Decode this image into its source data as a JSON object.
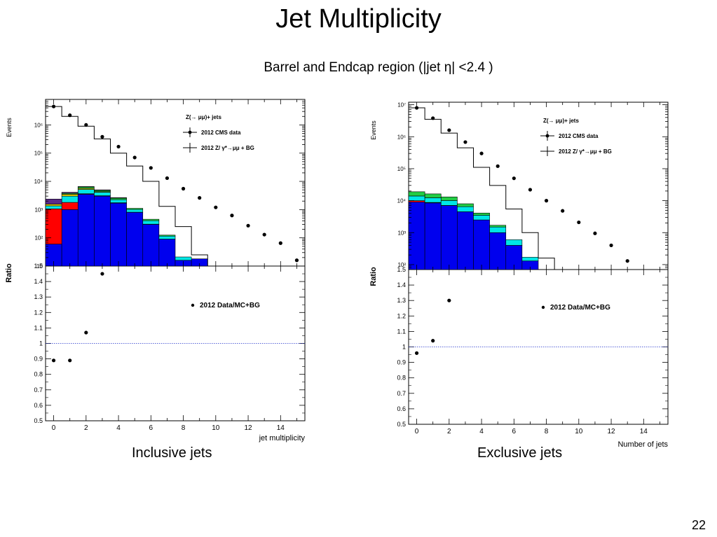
{
  "slide": {
    "title": "Jet Multiplicity",
    "subtitle": "Barrel and Endcap region (|jet η| <2.4 )",
    "page_number": "22"
  },
  "colors": {
    "data": "#000000",
    "mc_total": "#000000",
    "bg_blue": "#0000ee",
    "bg_cyan": "#00e6e6",
    "bg_red": "#ff0000",
    "bg_yellow": "#e6d200",
    "bg_green": "#22cc44",
    "bg_purple": "#5a2a8a",
    "ratio_line": "#2233cc"
  },
  "chart_data": [
    {
      "type": "histogram+scatter",
      "caption": "Inclusive jets",
      "top": {
        "ylabel": "Events",
        "yscale": "log",
        "ylim": [
          10,
          8000000
        ],
        "xlim": [
          -0.5,
          15.5
        ],
        "ytick_labels": [
          {
            "v": 10,
            "t": "10"
          },
          {
            "v": 100,
            "t": "10²"
          },
          {
            "v": 1000,
            "t": "10³"
          },
          {
            "v": 10000,
            "t": "10⁴"
          },
          {
            "v": 100000,
            "t": "10⁵"
          },
          {
            "v": 1000000,
            "t": "10⁶"
          }
        ],
        "legend": {
          "title": "Z(→ μμ)+ jets",
          "entries": [
            "2012 CMS data",
            "2012 Z/ γ*→μμ + BG"
          ]
        },
        "data_points": {
          "x": [
            0,
            1,
            2,
            3,
            4,
            5,
            6,
            7,
            8,
            9,
            10,
            11,
            12,
            13,
            14,
            15
          ],
          "y": [
            4500000,
            2200000,
            1000000,
            380000,
            170000,
            70000,
            30000,
            13000,
            5500,
            2600,
            1200,
            620,
            270,
            130,
            65,
            16
          ]
        },
        "mc_total_histogram": {
          "edges": [
            -0.5,
            0.5,
            1.5,
            2.5,
            3.5,
            4.5,
            5.5,
            6.5,
            7.5,
            8.5,
            9.5
          ],
          "values": [
            4500000,
            2000000,
            900000,
            320000,
            100000,
            35000,
            10000,
            1300,
            250,
            25
          ]
        },
        "bg_stack": {
          "edges": [
            -0.5,
            0.5,
            1.5,
            2.5,
            3.5,
            4.5,
            5.5,
            6.5,
            7.5,
            8.5,
            9.5
          ],
          "layers": [
            {
              "color_key": "bg_blue",
              "values": [
                60,
                1000,
                3500,
                3000,
                1700,
                800,
                300,
                90,
                16,
                18
              ]
            },
            {
              "color_key": "bg_red",
              "values": [
                1000,
                800,
                150,
                100,
                50,
                10,
                5,
                0,
                0,
                0
              ]
            },
            {
              "color_key": "bg_cyan",
              "values": [
                300,
                1200,
                1500,
                1000,
                500,
                200,
                100,
                25,
                5,
                0
              ]
            },
            {
              "color_key": "bg_yellow",
              "values": [
                200,
                500,
                500,
                200,
                0,
                0,
                0,
                0,
                0,
                0
              ]
            },
            {
              "color_key": "bg_green",
              "values": [
                0,
                300,
                700,
                500,
                300,
                100,
                50,
                10,
                0,
                0
              ]
            },
            {
              "color_key": "bg_purple",
              "values": [
                800,
                300,
                200,
                200,
                100,
                0,
                0,
                0,
                0,
                0
              ]
            }
          ]
        }
      },
      "bottom": {
        "ylabel": "Ratio",
        "xlabel": "jet multiplicity",
        "ylim": [
          0.5,
          1.5
        ],
        "xlim": [
          -0.5,
          15.5
        ],
        "yticks": [
          0.5,
          0.6,
          0.7,
          0.8,
          0.9,
          1,
          1.1,
          1.2,
          1.3,
          1.4,
          1.5
        ],
        "ytick_labels": [
          "0.5",
          "0.6",
          "0.7",
          "0.8",
          "0.9",
          "1",
          "1.1",
          "1.2",
          "1.3",
          "1.4",
          "1.5"
        ],
        "xticks": [
          0,
          2,
          4,
          6,
          8,
          10,
          12,
          14
        ],
        "xtick_labels": [
          "0",
          "2",
          "4",
          "6",
          "8",
          "10",
          "12",
          "14"
        ],
        "legend": "2012 Data/MC+BG",
        "reference_line": 1.0,
        "points": {
          "x": [
            0,
            1,
            2,
            3
          ],
          "y": [
            0.89,
            0.89,
            1.07,
            1.45
          ]
        }
      }
    },
    {
      "type": "histogram+scatter",
      "caption": "Exclusive jets",
      "top": {
        "ylabel": "Events",
        "yscale": "log",
        "ylim": [
          70,
          12000000
        ],
        "xlim": [
          -0.5,
          15.5
        ],
        "ytick_labels": [
          {
            "v": 100,
            "t": "10²"
          },
          {
            "v": 1000,
            "t": "10³"
          },
          {
            "v": 10000,
            "t": "10⁴"
          },
          {
            "v": 100000,
            "t": "10⁵"
          },
          {
            "v": 1000000,
            "t": "10⁶"
          },
          {
            "v": 10000000,
            "t": "10⁷"
          }
        ],
        "legend": {
          "title": "Z(→ μμ)+ jets",
          "entries": [
            "2012 CMS data",
            "2012 Z/ γ*→μμ + BG"
          ]
        },
        "data_points": {
          "x": [
            0,
            1,
            2,
            3,
            4,
            5,
            6,
            7,
            8,
            9,
            10,
            11,
            12,
            13
          ],
          "y": [
            8000000,
            3800000,
            1600000,
            680000,
            300000,
            120000,
            50000,
            22000,
            10000,
            4800,
            2100,
            950,
            400,
            130
          ]
        },
        "mc_total_histogram": {
          "edges": [
            -0.5,
            0.5,
            1.5,
            2.5,
            3.5,
            4.5,
            5.5,
            6.5,
            7.5,
            8.5,
            9.5
          ],
          "values": [
            8000000,
            3500000,
            1300000,
            450000,
            110000,
            30000,
            5500,
            1000,
            160,
            70
          ]
        },
        "bg_stack": {
          "edges": [
            -0.5,
            0.5,
            1.5,
            2.5,
            3.5,
            4.5,
            5.5,
            6.5,
            7.5,
            8.5,
            9.5
          ],
          "layers": [
            {
              "color_key": "bg_blue",
              "values": [
                9000,
                8500,
                7000,
                4500,
                2500,
                1000,
                400,
                130,
                0,
                0
              ]
            },
            {
              "color_key": "bg_red",
              "values": [
                1000,
                300,
                100,
                0,
                0,
                0,
                0,
                0,
                0,
                0
              ]
            },
            {
              "color_key": "bg_cyan",
              "values": [
                4000,
                3500,
                3000,
                2000,
                1000,
                500,
                200,
                40,
                0,
                0
              ]
            },
            {
              "color_key": "bg_green",
              "values": [
                5000,
                4000,
                3000,
                1500,
                600,
                200,
                0,
                0,
                0,
                0
              ]
            }
          ]
        }
      },
      "bottom": {
        "ylabel": "Ratio",
        "xlabel": "Number of jets",
        "ylim": [
          0.5,
          1.5
        ],
        "xlim": [
          -0.5,
          15.5
        ],
        "yticks": [
          0.5,
          0.6,
          0.7,
          0.8,
          0.9,
          1,
          1.1,
          1.2,
          1.3,
          1.4,
          1.5
        ],
        "ytick_labels": [
          "0.5",
          "0.6",
          "0.7",
          "0.8",
          "0.9",
          "1",
          "1.1",
          "1.2",
          "1.3",
          "1.4",
          "1.5"
        ],
        "xticks": [
          0,
          2,
          4,
          6,
          8,
          10,
          12,
          14
        ],
        "xtick_labels": [
          "0",
          "2",
          "4",
          "6",
          "8",
          "10",
          "12",
          "14"
        ],
        "legend": "2012 Data/MC+BG",
        "reference_line": 1.0,
        "points": {
          "x": [
            0,
            1,
            2
          ],
          "y": [
            0.96,
            1.04,
            1.3
          ]
        }
      }
    }
  ]
}
